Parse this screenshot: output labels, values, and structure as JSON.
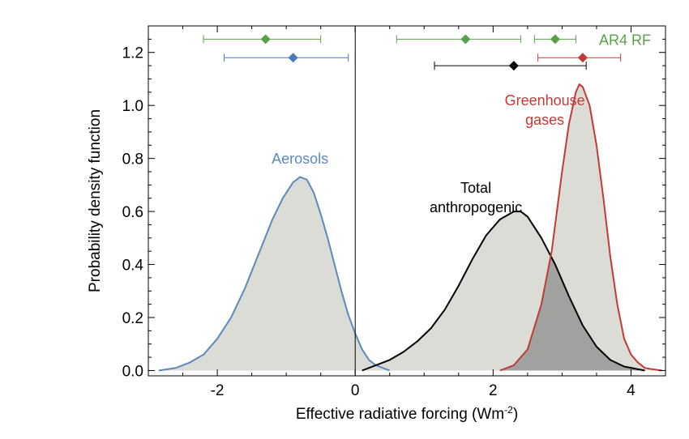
{
  "chart_data": {
    "type": "area",
    "xlabel": "Effective radiative forcing (Wm",
    "xlabel_sup": "-2",
    "xlabel_end": ")",
    "ylabel": "Probability density function",
    "xlim": [
      -3.0,
      4.5
    ],
    "ylim": [
      -0.02,
      1.3
    ],
    "x_ticks": [
      -2,
      0,
      2,
      4
    ],
    "x_tick_labels": [
      "-2",
      "0",
      "2",
      "4"
    ],
    "y_ticks": [
      0.0,
      0.2,
      0.4,
      0.6,
      0.8,
      1.0,
      1.2
    ],
    "y_tick_labels": [
      "0.0",
      "0.2",
      "0.4",
      "0.6",
      "0.8",
      "1.0",
      "1.2"
    ],
    "vertical_line_x": 0,
    "series": [
      {
        "name": "Aerosols",
        "color": "#5b89bd",
        "fill": "#dcdcd7",
        "label_lines": [
          "Aerosols"
        ],
        "label_anchor": [
          -0.8,
          0.78
        ],
        "x": [
          -2.85,
          -2.6,
          -2.4,
          -2.2,
          -2.0,
          -1.8,
          -1.6,
          -1.4,
          -1.2,
          -1.05,
          -0.9,
          -0.8,
          -0.7,
          -0.6,
          -0.5,
          -0.4,
          -0.3,
          -0.2,
          -0.1,
          0.0,
          0.1,
          0.2,
          0.3,
          0.4,
          0.5
        ],
        "y": [
          0.0,
          0.01,
          0.03,
          0.06,
          0.12,
          0.2,
          0.31,
          0.44,
          0.57,
          0.65,
          0.71,
          0.73,
          0.72,
          0.67,
          0.59,
          0.5,
          0.4,
          0.3,
          0.21,
          0.14,
          0.08,
          0.04,
          0.02,
          0.01,
          0.0
        ]
      },
      {
        "name": "Total anthropogenic",
        "color": "#000000",
        "fill": "#dcdcd7",
        "label_lines": [
          "Total",
          "anthropogenic"
        ],
        "label_anchor": [
          1.75,
          0.67
        ],
        "x": [
          0.1,
          0.3,
          0.5,
          0.7,
          0.9,
          1.1,
          1.3,
          1.5,
          1.7,
          1.9,
          2.1,
          2.3,
          2.4,
          2.5,
          2.7,
          2.9,
          3.1,
          3.3,
          3.5,
          3.7,
          3.9,
          4.2
        ],
        "y": [
          0.0,
          0.02,
          0.04,
          0.07,
          0.11,
          0.16,
          0.23,
          0.32,
          0.42,
          0.51,
          0.57,
          0.6,
          0.6,
          0.58,
          0.5,
          0.4,
          0.28,
          0.17,
          0.09,
          0.04,
          0.015,
          0.0
        ]
      },
      {
        "name": "Greenhouse gases",
        "color": "#c23a34",
        "fill": "#dcdcd7",
        "label_lines": [
          "Greenhouse",
          "gases"
        ],
        "label_anchor": [
          2.75,
          1.0
        ],
        "x": [
          2.1,
          2.3,
          2.5,
          2.7,
          2.85,
          3.0,
          3.1,
          3.2,
          3.25,
          3.3,
          3.4,
          3.5,
          3.6,
          3.7,
          3.8,
          3.9,
          4.0,
          4.1,
          4.2,
          4.3,
          4.45
        ],
        "y": [
          0.0,
          0.02,
          0.08,
          0.25,
          0.45,
          0.75,
          0.93,
          1.05,
          1.08,
          1.07,
          1.0,
          0.85,
          0.65,
          0.43,
          0.25,
          0.12,
          0.06,
          0.03,
          0.01,
          0.005,
          0.0
        ]
      }
    ],
    "overlap_fill": "#a1a19f",
    "error_bars": [
      {
        "name": "Aerosols AR4 RF",
        "color": "#5aa04a",
        "y": 1.25,
        "center": -1.3,
        "low": -2.2,
        "high": -0.5
      },
      {
        "name": "Aerosols",
        "color": "#4a7bbf",
        "y": 1.18,
        "center": -0.9,
        "low": -1.9,
        "high": -0.1
      },
      {
        "name": "Total anthropogenic AR4 RF",
        "color": "#5aa04a",
        "y": 1.25,
        "center": 1.6,
        "low": 0.6,
        "high": 2.4
      },
      {
        "name": "Greenhouse gases AR4 RF",
        "color": "#5aa04a",
        "y": 1.25,
        "center": 2.9,
        "low": 2.6,
        "high": 3.2
      },
      {
        "name": "Greenhouse gases",
        "color": "#c23a34",
        "y": 1.18,
        "center": 3.3,
        "low": 2.65,
        "high": 3.85
      },
      {
        "name": "Total anthropogenic",
        "color": "#000000",
        "y": 1.15,
        "center": 2.3,
        "low": 1.15,
        "high": 3.35
      }
    ],
    "ar4_label": {
      "text": "AR4 RF",
      "color": "#5aa04a"
    }
  }
}
